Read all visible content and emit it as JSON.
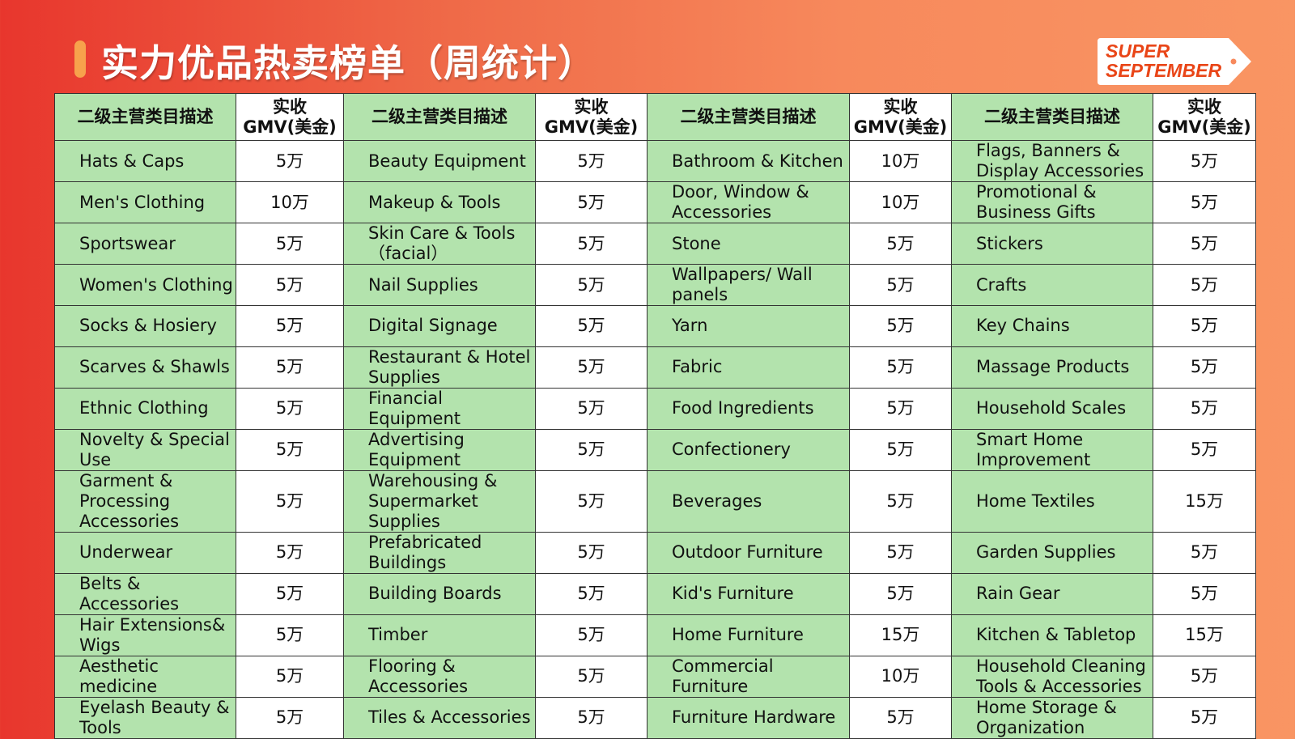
{
  "title": "实力优品热卖榜单（周统计）",
  "logo": {
    "line1": "SUPER",
    "line2": "SEPTEMBER"
  },
  "header": {
    "desc": "二级主营类目描述",
    "gmv_line1": "实收",
    "gmv_line2": "GMV(美金)"
  },
  "rows": [
    [
      [
        "Hats & Caps",
        "5万"
      ],
      [
        "Beauty Equipment",
        "5万"
      ],
      [
        "Bathroom & Kitchen",
        "10万"
      ],
      [
        "Flags, Banners & Display Accessories",
        "5万"
      ]
    ],
    [
      [
        "Men's Clothing",
        "10万"
      ],
      [
        "Makeup & Tools",
        "5万"
      ],
      [
        "Door, Window & Accessories",
        "10万"
      ],
      [
        "Promotional & Business Gifts",
        "5万"
      ]
    ],
    [
      [
        "Sportswear",
        "5万"
      ],
      [
        "Skin Care & Tools（facial）",
        "5万"
      ],
      [
        "Stone",
        "5万"
      ],
      [
        "Stickers",
        "5万"
      ]
    ],
    [
      [
        "Women's Clothing",
        "5万"
      ],
      [
        "Nail Supplies",
        "5万"
      ],
      [
        "Wallpapers/ Wall panels",
        "5万"
      ],
      [
        "Crafts",
        "5万"
      ]
    ],
    [
      [
        "Socks & Hosiery",
        "5万"
      ],
      [
        "Digital Signage",
        "5万"
      ],
      [
        "Yarn",
        "5万"
      ],
      [
        "Key Chains",
        "5万"
      ]
    ],
    [
      [
        "Scarves & Shawls",
        "5万"
      ],
      [
        "Restaurant & Hotel Supplies",
        "5万"
      ],
      [
        "Fabric",
        "5万"
      ],
      [
        "Massage Products",
        "5万"
      ]
    ],
    [
      [
        "Ethnic Clothing",
        "5万"
      ],
      [
        "Financial Equipment",
        "5万"
      ],
      [
        "Food Ingredients",
        "5万"
      ],
      [
        "Household Scales",
        "5万"
      ]
    ],
    [
      [
        "Novelty & Special Use",
        "5万"
      ],
      [
        "Advertising Equipment",
        "5万"
      ],
      [
        "Confectionery",
        "5万"
      ],
      [
        "Smart Home Improvement",
        "5万"
      ]
    ],
    [
      [
        "Garment & Processing Accessories",
        "5万"
      ],
      [
        "Warehousing & Supermarket Supplies",
        "5万"
      ],
      [
        "Beverages",
        "5万"
      ],
      [
        "Home Textiles",
        "15万"
      ]
    ],
    [
      [
        "Underwear",
        "5万"
      ],
      [
        "Prefabricated Buildings",
        "5万"
      ],
      [
        "Outdoor Furniture",
        "5万"
      ],
      [
        "Garden Supplies",
        "5万"
      ]
    ],
    [
      [
        "Belts & Accessories",
        "5万"
      ],
      [
        "Building Boards",
        "5万"
      ],
      [
        "Kid's Furniture",
        "5万"
      ],
      [
        "Rain Gear",
        "5万"
      ]
    ],
    [
      [
        "Hair Extensions& Wigs",
        "5万"
      ],
      [
        "Timber",
        "5万"
      ],
      [
        "Home Furniture",
        "15万"
      ],
      [
        "Kitchen & Tabletop",
        "15万"
      ]
    ],
    [
      [
        "Aesthetic medicine",
        "5万"
      ],
      [
        "Flooring & Accessories",
        "5万"
      ],
      [
        "Commercial Furniture",
        "10万"
      ],
      [
        "Household Cleaning Tools & Accessories",
        "5万"
      ]
    ],
    [
      [
        "Eyelash Beauty & Tools",
        "5万"
      ],
      [
        "Tiles & Accessories",
        "5万"
      ],
      [
        "Furniture Hardware",
        "5万"
      ],
      [
        "Home Storage & Organization",
        "5万"
      ]
    ]
  ],
  "colors": {
    "desc_cell": "#b3e3ad",
    "accent": "#e94517"
  }
}
